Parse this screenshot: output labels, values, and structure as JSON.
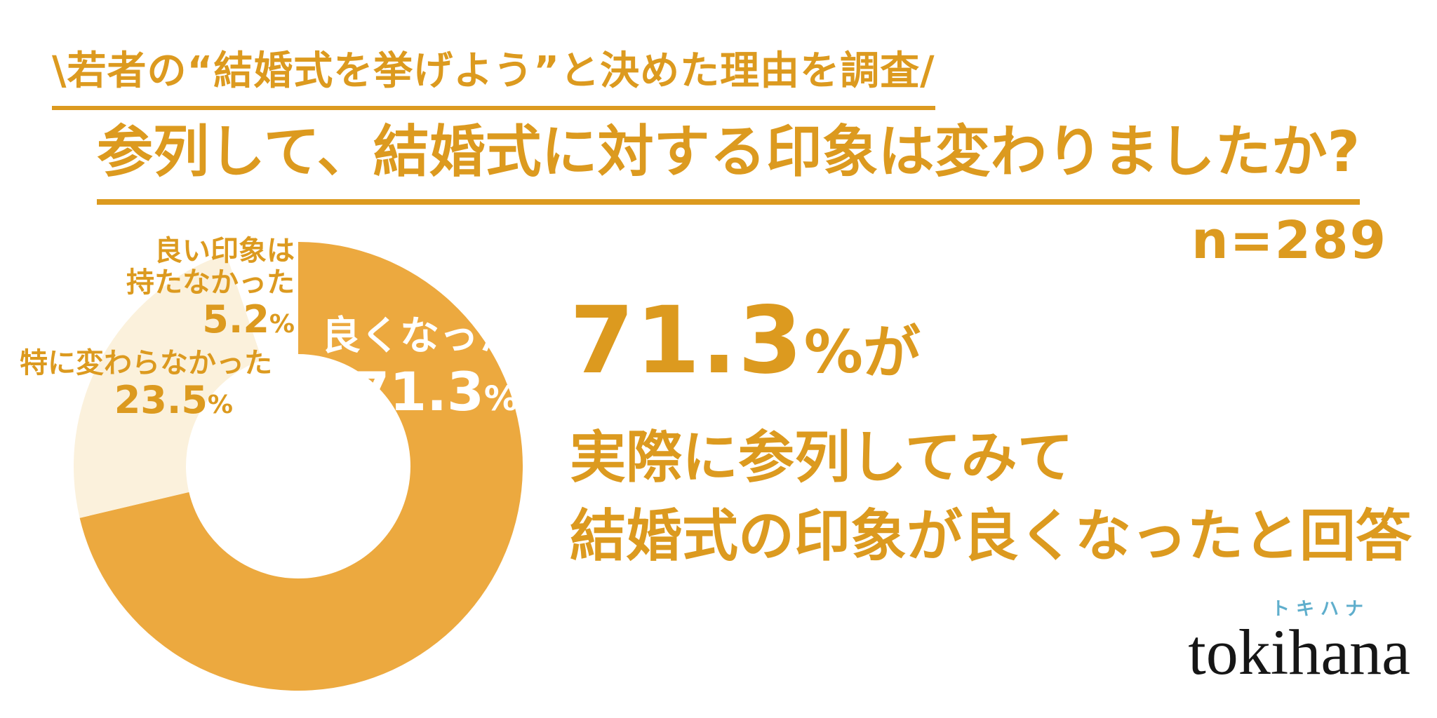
{
  "colors": {
    "accent_text": "#DC9A1F",
    "donut_positive": "#ECA93F",
    "donut_neutral": "#FBF1DC",
    "donut_negative": "#FFFFFF",
    "inside_label_text": "#FFFFFF",
    "logo_text": "#161616",
    "logo_katakana_blue": "#5FAECC"
  },
  "header": {
    "tagline": "\\若者の“結婚式を挙げよう”と決めた理由を調査/",
    "title": "参列して、結婚式に対する印象は変わりましたか?",
    "sample_size": "n=289"
  },
  "chart_data": {
    "type": "pie",
    "donut": true,
    "start_angle": "top",
    "direction": "clockwise",
    "unit": "%",
    "title": "参列して、結婚式に対する印象は変わりましたか?",
    "sample_size": 289,
    "segments": [
      {
        "label": "良くなった",
        "value": 71.3,
        "color": "#ECA93F",
        "text_color": "#FFFFFF",
        "label_placement": "inside"
      },
      {
        "label": "特に変わらなかった",
        "value": 23.5,
        "color": "#FBF1DC",
        "text_color": "#DC9A1F",
        "label_placement": "outside-left"
      },
      {
        "label": "良い印象は持たなかった",
        "label_lines": [
          "良い印象は",
          "持たなかった"
        ],
        "value": 5.2,
        "color": "#FFFFFF",
        "text_color": "#DC9A1F",
        "label_placement": "outside-top-left"
      }
    ]
  },
  "highlight": {
    "percent_number": "71.3",
    "percent_sign": "%",
    "suffix": "が",
    "line2": "実際に参列してみて",
    "line3": "結婚式の印象が良くなったと回答"
  },
  "logo": {
    "katakana": "トキハナ",
    "wordmark": "tokihana"
  }
}
